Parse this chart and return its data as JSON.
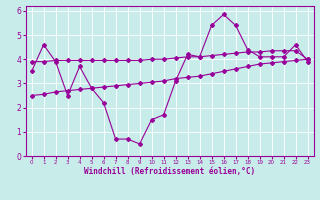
{
  "title": "",
  "xlabel": "Windchill (Refroidissement éolien,°C)",
  "ylabel": "",
  "bg_color": "#c8ece9",
  "grid_color": "#ffffff",
  "line_color": "#990099",
  "xlim": [
    -0.5,
    23.5
  ],
  "ylim": [
    0,
    6.2
  ],
  "x_ticks": [
    0,
    1,
    2,
    3,
    4,
    5,
    6,
    7,
    8,
    9,
    10,
    11,
    12,
    13,
    14,
    15,
    16,
    17,
    18,
    19,
    20,
    21,
    22,
    23
  ],
  "y_ticks": [
    0,
    1,
    2,
    3,
    4,
    5,
    6
  ],
  "series1_x": [
    0,
    1,
    2,
    3,
    4,
    5,
    6,
    7,
    8,
    9,
    10,
    11,
    12,
    13,
    14,
    15,
    16,
    17,
    18,
    19,
    20,
    21,
    22,
    23
  ],
  "series1_y": [
    3.5,
    4.6,
    3.9,
    2.5,
    3.7,
    2.8,
    2.2,
    0.7,
    0.7,
    0.5,
    1.5,
    1.7,
    3.1,
    4.2,
    4.1,
    5.4,
    5.85,
    5.4,
    4.4,
    4.1,
    4.1,
    4.1,
    4.6,
    3.9
  ],
  "series2_x": [
    0,
    1,
    2,
    3,
    4,
    5,
    6,
    7,
    8,
    9,
    10,
    11,
    12,
    13,
    14,
    15,
    16,
    17,
    18,
    19,
    20,
    21,
    22,
    23
  ],
  "series2_y": [
    3.9,
    3.9,
    3.95,
    3.95,
    3.95,
    3.95,
    3.95,
    3.95,
    3.95,
    3.95,
    4.0,
    4.0,
    4.05,
    4.1,
    4.1,
    4.15,
    4.2,
    4.25,
    4.3,
    4.3,
    4.35,
    4.35,
    4.35,
    4.0
  ],
  "series3_x": [
    0,
    1,
    2,
    3,
    4,
    5,
    6,
    7,
    8,
    9,
    10,
    11,
    12,
    13,
    14,
    15,
    16,
    17,
    18,
    19,
    20,
    21,
    22,
    23
  ],
  "series3_y": [
    2.5,
    2.55,
    2.65,
    2.7,
    2.75,
    2.8,
    2.85,
    2.9,
    2.95,
    3.0,
    3.05,
    3.1,
    3.2,
    3.25,
    3.3,
    3.4,
    3.5,
    3.6,
    3.7,
    3.8,
    3.85,
    3.9,
    3.95,
    4.0
  ]
}
